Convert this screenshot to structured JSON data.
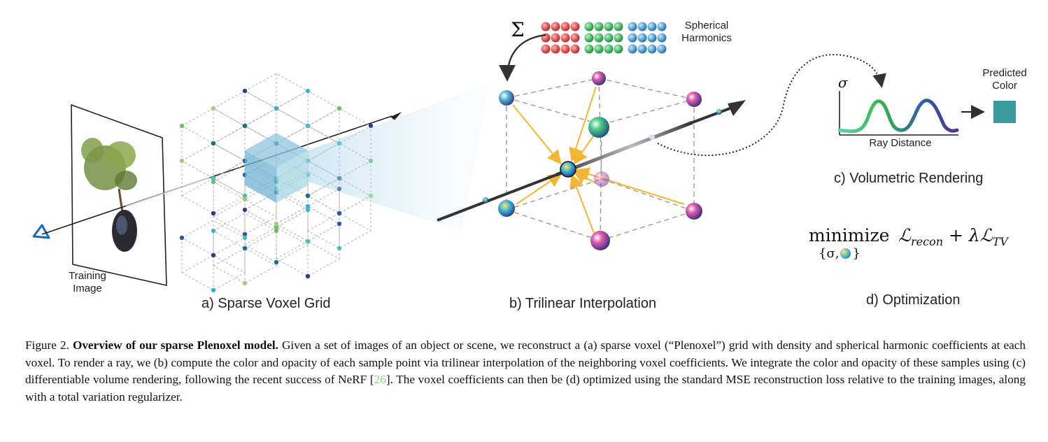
{
  "labels": {
    "training_image": [
      "Training",
      "Image"
    ],
    "panel_a": "a) Sparse Voxel Grid",
    "panel_b": "b) Trilinear Interpolation",
    "panel_c": "c) Volumetric Rendering",
    "panel_d": "d) Optimization",
    "spherical_harmonics": [
      "Spherical",
      "Harmonics"
    ],
    "sum_symbol": "Σ",
    "sigma_axis": "σ",
    "ray_distance": "Ray Distance",
    "predicted_color": [
      "Predicted",
      "Color"
    ]
  },
  "optimization": {
    "operator": "minimize",
    "subscript_open": "{σ,",
    "subscript_close": "}",
    "loss_main": "ℒ",
    "loss_main_sub": "recon",
    "plus": "+ λℒ",
    "loss_tv_sub": "TV"
  },
  "caption": {
    "lead": "Figure 2. ",
    "title": "Overview of our sparse Plenoxel model.",
    "body_1": " Given a set of images of an object or scene, we reconstruct a (a) sparse voxel (“Plenoxel”) grid with density and spherical harmonic coefficients at each voxel. To render a ray, we (b) compute the color and opacity of each sample point via trilinear interpolation of the neighboring voxel coefficients. We integrate the color and opacity of these samples using (c) differentiable volume rendering, following the recent success of NeRF [",
    "citation": "26",
    "body_2": "]. The voxel coefficients can then be (d) optimized using the standard MSE reconstruction loss relative to the training images, along with a total variation regularizer."
  },
  "colors": {
    "predicted_color": "#3a9a9c",
    "arrow_yellow": "#f2b632",
    "ray_dark": "#333333",
    "voxel_highlight": "#8cc6dd"
  }
}
